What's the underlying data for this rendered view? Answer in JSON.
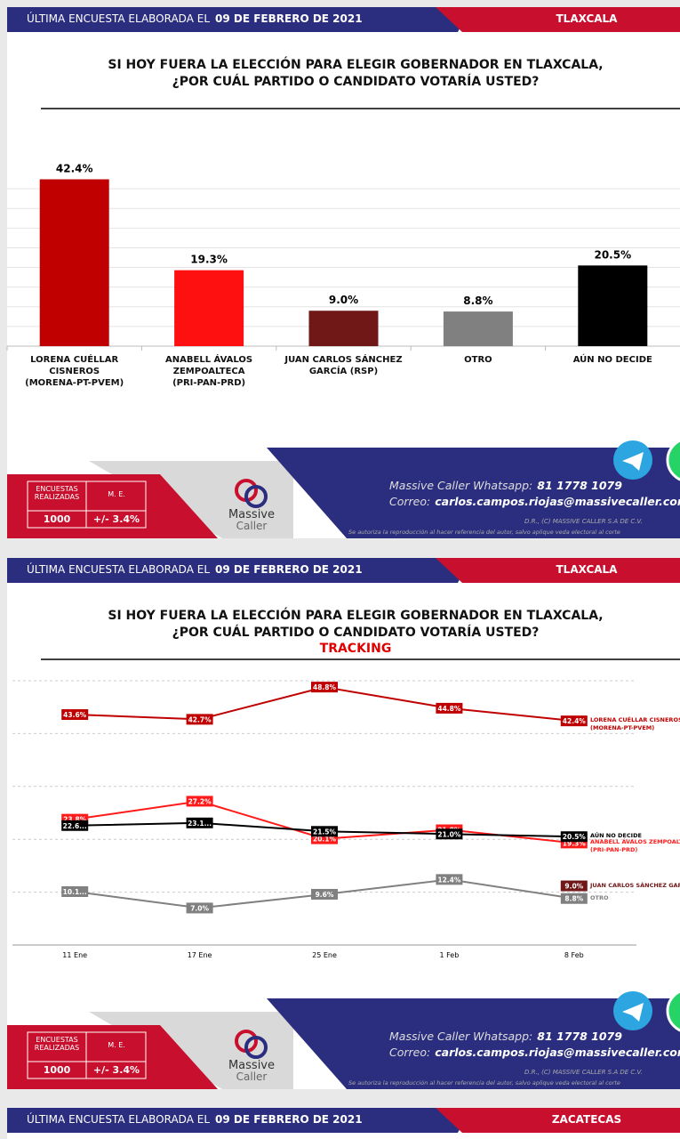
{
  "slides": [
    {
      "header_prefix": "ÚLTIMA ENCUESTA ELABORADA EL",
      "header_date": "09 DE FEBRERO DE 2021",
      "state": "TLAXCALA"
    },
    {
      "header_prefix": "ÚLTIMA ENCUESTA ELABORADA EL",
      "header_date": "09 DE FEBRERO DE 2021",
      "state": "TLAXCALA"
    },
    {
      "header_prefix": "ÚLTIMA ENCUESTA ELABORADA EL",
      "header_date": "09 DE FEBRERO DE 2021",
      "state": "ZACATECAS"
    }
  ],
  "footer": {
    "surveys_label": "ENCUESTAS REALIZADAS",
    "me_label": "M. E.",
    "surveys": "1000",
    "me": "+/- 3.4%",
    "logo_top": "Massive",
    "logo_bottom": "Caller",
    "whatsapp_label": "Massive Caller Whatsapp:",
    "whatsapp": "81 1778 1079",
    "mail_label": "Correo:",
    "mail": "carlos.campos.riojas@massivecaller.com",
    "rights": "D.R., (C) MASSIVE CALLER S.A DE C.V.",
    "notice": "Se autoriza la reproducción al hacer referencia del autor, salvo aplique veda electoral al corte"
  },
  "chart_data": [
    {
      "type": "bar",
      "title": "SI HOY FUERA LA ELECCIÓN PARA ELEGIR GOBERNADOR EN TLAXCALA,\n¿POR CUÁL PARTIDO O CANDIDATO VOTARÍA USTED?",
      "categories": [
        "LORENA CUÉLLAR CISNEROS\n(MORENA-PT-PVEM)",
        "ANABELL ÁVALOS\nZEMPOALTECA\n(PRI-PAN-PRD)",
        "JUAN CARLOS SÁNCHEZ\nGARCÍA (RSP)",
        "OTRO",
        "AÚN NO DECIDE"
      ],
      "values": [
        42.4,
        19.3,
        9.0,
        8.8,
        20.5
      ],
      "value_labels": [
        "42.4%",
        "19.3%",
        "9.0%",
        "8.8%",
        "20.5%"
      ],
      "colors": [
        "#c00000",
        "#ff1010",
        "#701818",
        "#808080",
        "#000000"
      ],
      "ylim": [
        0,
        45
      ],
      "yticks": [
        0,
        5,
        10,
        15,
        20,
        25,
        30,
        35,
        40
      ],
      "grid": true
    },
    {
      "type": "line",
      "title": "SI HOY FUERA LA ELECCIÓN PARA ELEGIR GOBERNADOR EN TLAXCALA,\n¿POR CUÁL PARTIDO O CANDIDATO VOTARÍA USTED?",
      "subtitle": "TRACKING",
      "categories": [
        "11 Ene",
        "17 Ene",
        "25 Ene",
        "1 Feb",
        "8 Feb"
      ],
      "series": [
        {
          "name": "LORENA CUÉLLAR CISNEROS\n(MORENA-PT-PVEM)",
          "color": "#c00000",
          "values": [
            43.6,
            42.7,
            48.8,
            44.8,
            42.4
          ],
          "value_labels": [
            "43.6%",
            "42.7%",
            "48.8%",
            "44.8%",
            "42.4%"
          ]
        },
        {
          "name": "ANABELL ÁVALOS ZEMPOALTECA\n(PRI-PAN-PRD)",
          "color": "#ff1a1a",
          "values": [
            23.8,
            27.2,
            20.1,
            21.8,
            19.3
          ],
          "value_labels": [
            "23.8%",
            "27.2%",
            "20.1%",
            "21.8%",
            "19.3%"
          ]
        },
        {
          "name": "AÚN NO DECIDE",
          "color": "#000000",
          "values": [
            22.6,
            23.1,
            21.5,
            21.0,
            20.5
          ],
          "value_labels": [
            "22.6...",
            "23.1...",
            "21.5%",
            "21.0%",
            "20.5%"
          ]
        },
        {
          "name": "JUAN CARLOS SÁNCHEZ GARCÍA (RSP)",
          "color": "#701818",
          "values": [
            null,
            null,
            null,
            null,
            9.0
          ],
          "value_labels": [
            null,
            null,
            null,
            null,
            "9.0%"
          ]
        },
        {
          "name": "OTRO",
          "color": "#808080",
          "values": [
            10.1,
            7.0,
            9.6,
            12.4,
            8.8
          ],
          "value_labels": [
            "10.1...",
            "7.0%",
            "9.6%",
            "12.4%",
            "8.8%"
          ]
        }
      ],
      "ylim": [
        0,
        50
      ],
      "yticks": [
        0,
        10,
        20,
        30,
        40,
        50
      ],
      "grid": true,
      "grid_style": "dashed"
    }
  ]
}
